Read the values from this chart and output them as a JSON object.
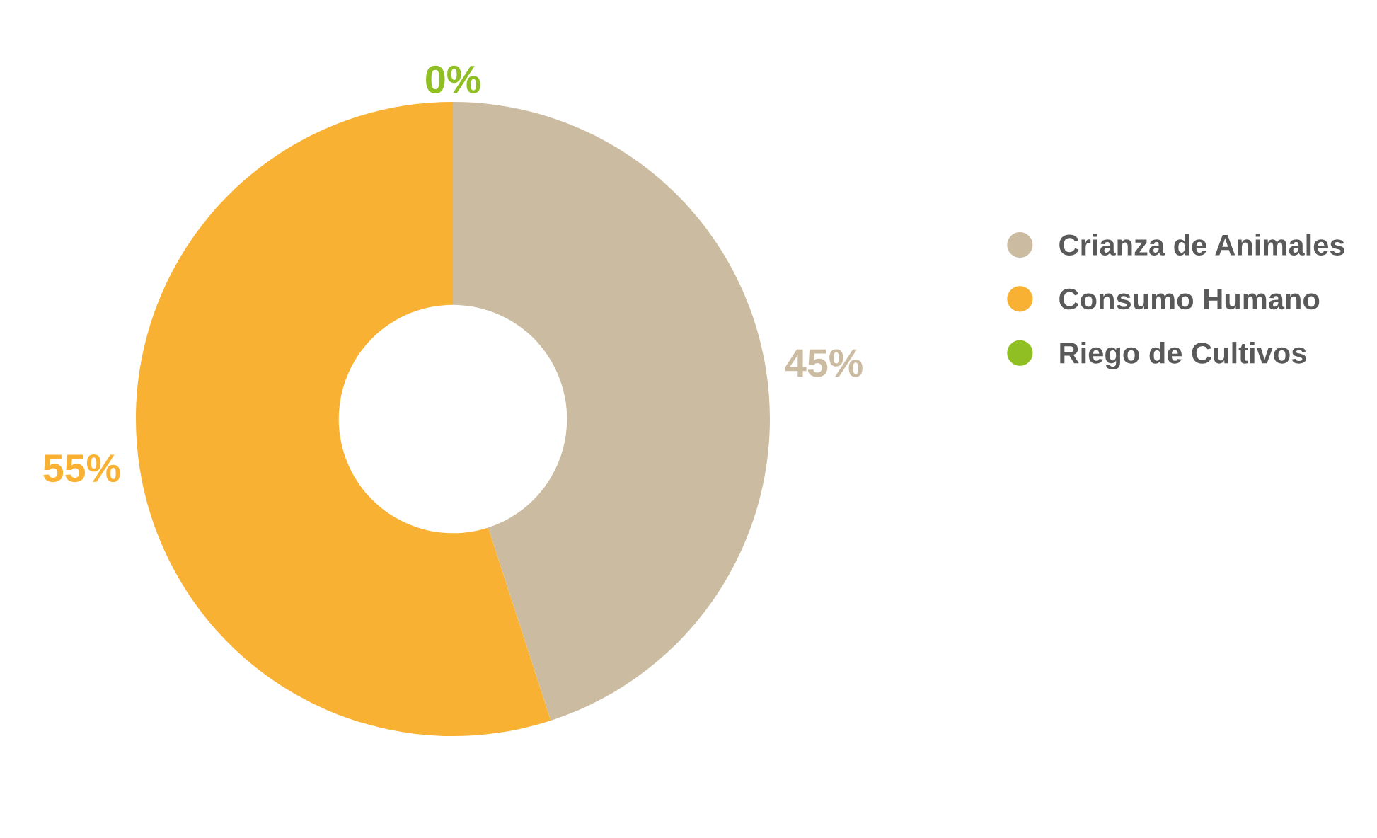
{
  "chart_data": {
    "type": "donut",
    "categories": [
      "Crianza de Animales",
      "Consumo Humano",
      "Riego de Cultivos"
    ],
    "values": [
      45,
      55,
      0
    ],
    "colors": [
      "#cbbca1",
      "#f8b133",
      "#8fbf22"
    ],
    "value_labels": [
      "45%",
      "55%",
      "0%"
    ],
    "legend": "right"
  }
}
